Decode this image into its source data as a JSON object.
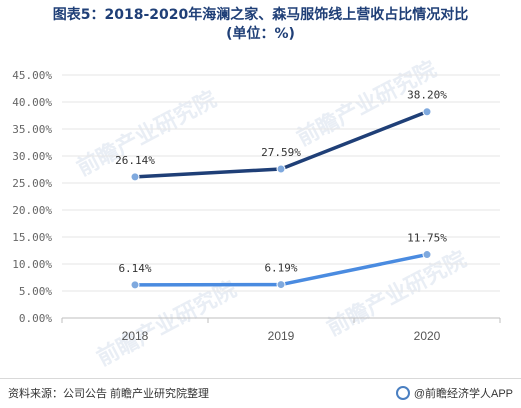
{
  "title": {
    "line1": "图表5：2018-2020年海澜之家、森马服饰线上营收占比情况对比",
    "line2": "(单位：%)"
  },
  "footer": {
    "source": "资料来源：公司公告 前瞻产业研究院整理",
    "brand": "@前瞻经济学人APP"
  },
  "watermark": {
    "text": "前瞻产业研究院"
  },
  "colors": {
    "series1": "#1f3f77",
    "series2": "#4a8be0",
    "grid": "#e6e6e6",
    "axis": "#bfbfbf"
  },
  "chart_data": {
    "type": "line",
    "categories": [
      "2018",
      "2019",
      "2020"
    ],
    "series": [
      {
        "values": [
          26.14,
          27.59,
          38.2
        ],
        "labels": [
          "26.14%",
          "27.59%",
          "38.20%"
        ]
      },
      {
        "values": [
          6.14,
          6.19,
          11.75
        ],
        "labels": [
          "6.14%",
          "6.19%",
          "11.75%"
        ]
      }
    ],
    "yticks": [
      "0.00%",
      "5.00%",
      "10.00%",
      "15.00%",
      "20.00%",
      "25.00%",
      "30.00%",
      "35.00%",
      "40.00%",
      "45.00%"
    ],
    "ylim": [
      0,
      45
    ],
    "grid": true,
    "legend": "none"
  }
}
